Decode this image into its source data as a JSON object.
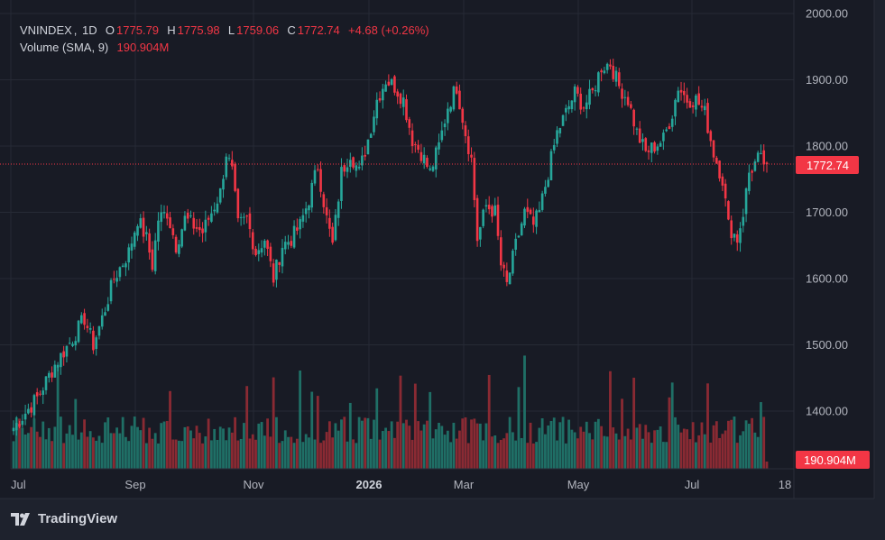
{
  "legend": {
    "symbol": "VNINDEX",
    "interval": "1D",
    "open_label": "O",
    "open": "1775.79",
    "high_label": "H",
    "high": "1775.98",
    "low_label": "L",
    "low": "1759.06",
    "close_label": "C",
    "close": "1772.74",
    "change": "+4.68 (+0.26%)",
    "volume_label": "Volume (SMA, 9)",
    "volume_value": "190.904M"
  },
  "price_tag": "1772.74",
  "volume_tag": "190.904M",
  "brand": "TradingView",
  "colors": {
    "up": "#26a69a",
    "down": "#f23645",
    "background": "#1e222d",
    "text": "#b2b5be"
  },
  "chart_data": {
    "type": "candlestick",
    "y_ticks": [
      "1400.00",
      "1500.00",
      "1600.00",
      "1700.00",
      "1800.00",
      "1900.00",
      "2000.00"
    ],
    "ylim": [
      1340,
      2010
    ],
    "x_ticks": [
      "Jul",
      "Sep",
      "Nov",
      "2026",
      "Mar",
      "May",
      "Jul",
      "18"
    ],
    "last_close": 1772.74,
    "anchors": [
      [
        0,
        1375
      ],
      [
        8,
        1420
      ],
      [
        14,
        1470
      ],
      [
        20,
        1510
      ],
      [
        24,
        1540
      ],
      [
        27,
        1500
      ],
      [
        30,
        1540
      ],
      [
        34,
        1600
      ],
      [
        39,
        1640
      ],
      [
        42,
        1690
      ],
      [
        45,
        1660
      ],
      [
        47,
        1620
      ],
      [
        49,
        1690
      ],
      [
        52,
        1700
      ],
      [
        55,
        1650
      ],
      [
        58,
        1690
      ],
      [
        61,
        1680
      ],
      [
        64,
        1670
      ],
      [
        67,
        1700
      ],
      [
        70,
        1730
      ],
      [
        72,
        1790
      ],
      [
        74,
        1760
      ],
      [
        76,
        1680
      ],
      [
        79,
        1690
      ],
      [
        82,
        1640
      ],
      [
        85,
        1660
      ],
      [
        88,
        1600
      ],
      [
        91,
        1650
      ],
      [
        94,
        1660
      ],
      [
        97,
        1680
      ],
      [
        100,
        1720
      ],
      [
        103,
        1770
      ],
      [
        106,
        1690
      ],
      [
        108,
        1650
      ],
      [
        111,
        1760
      ],
      [
        114,
        1790
      ],
      [
        117,
        1760
      ],
      [
        120,
        1810
      ],
      [
        123,
        1870
      ],
      [
        126,
        1900
      ],
      [
        129,
        1890
      ],
      [
        132,
        1870
      ],
      [
        135,
        1810
      ],
      [
        138,
        1790
      ],
      [
        141,
        1760
      ],
      [
        144,
        1800
      ],
      [
        147,
        1860
      ],
      [
        150,
        1890
      ],
      [
        153,
        1820
      ],
      [
        155,
        1780
      ],
      [
        157,
        1660
      ],
      [
        160,
        1710
      ],
      [
        163,
        1700
      ],
      [
        165,
        1620
      ],
      [
        167,
        1590
      ],
      [
        170,
        1650
      ],
      [
        173,
        1700
      ],
      [
        176,
        1680
      ],
      [
        178,
        1700
      ],
      [
        181,
        1760
      ],
      [
        184,
        1820
      ],
      [
        187,
        1850
      ],
      [
        190,
        1880
      ],
      [
        193,
        1860
      ],
      [
        196,
        1880
      ],
      [
        199,
        1920
      ],
      [
        202,
        1925
      ],
      [
        205,
        1890
      ],
      [
        208,
        1870
      ],
      [
        211,
        1820
      ],
      [
        214,
        1790
      ],
      [
        217,
        1800
      ],
      [
        220,
        1810
      ],
      [
        223,
        1850
      ],
      [
        225,
        1890
      ],
      [
        228,
        1870
      ],
      [
        231,
        1870
      ],
      [
        234,
        1850
      ],
      [
        237,
        1790
      ],
      [
        240,
        1750
      ],
      [
        242,
        1680
      ],
      [
        245,
        1660
      ],
      [
        247,
        1700
      ],
      [
        249,
        1760
      ],
      [
        252,
        1780
      ],
      [
        255,
        1772.74
      ]
    ],
    "volume_sma_last": "190.904M"
  }
}
